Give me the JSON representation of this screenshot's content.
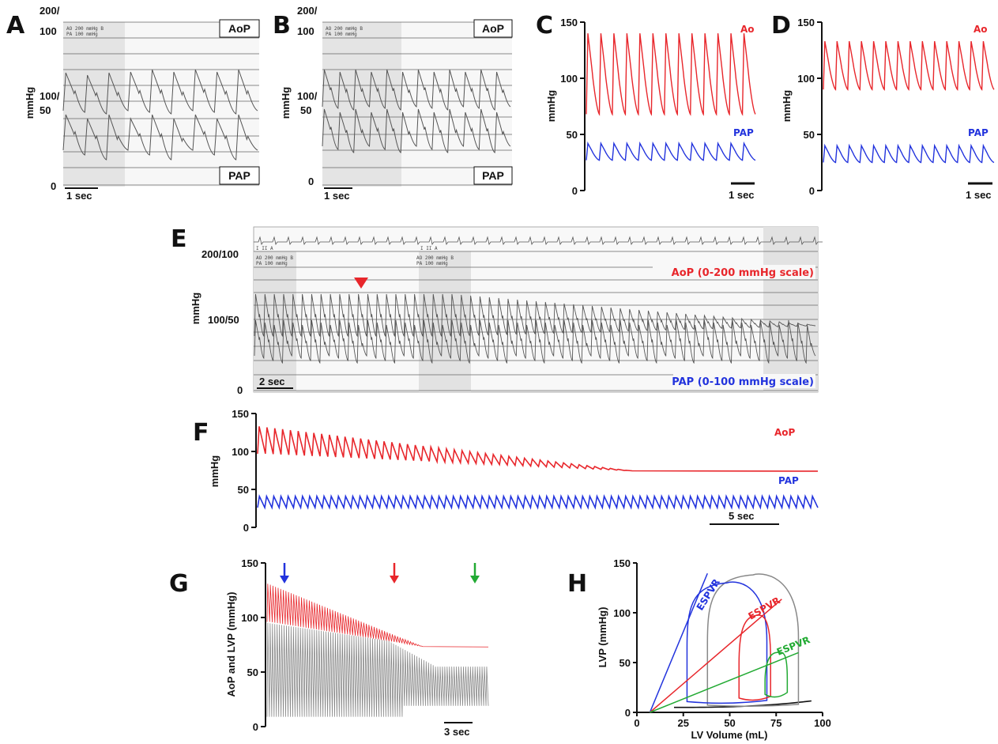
{
  "figure": {
    "panel_labels": [
      "A",
      "B",
      "C",
      "D",
      "E",
      "F",
      "G",
      "H"
    ],
    "colors": {
      "aop": "#e8262b",
      "pap": "#2233dd",
      "trace": "#555555",
      "esp_blue": "#2233dd",
      "esp_red": "#e8262b",
      "esp_green": "#22aa33",
      "gray": "#888888"
    },
    "icons": [
      "down-arrow-icon",
      "down-triangle-marker-icon"
    ]
  },
  "chart_data": [
    {
      "panel": "A",
      "type": "line",
      "ytick_labels": [
        "200/",
        "100",
        "100/",
        "50",
        "0"
      ],
      "ylabel": "mmHg",
      "box_labels": [
        "AoP",
        "PAP"
      ],
      "header_small": [
        "AO  200 mmHg   B",
        "PA  100 mmHg"
      ],
      "scale_bar": "1 sec",
      "beats": 9
    },
    {
      "panel": "B",
      "type": "line",
      "ytick_labels": [
        "200/",
        "100",
        "100/",
        "50",
        "0"
      ],
      "ylabel": "mmHg",
      "box_labels": [
        "AoP",
        "PAP"
      ],
      "header_small": [
        "AO  200 mmHg   B",
        "PA  100 mmHg"
      ],
      "scale_bar": "1 sec",
      "beats": 12
    },
    {
      "panel": "C",
      "type": "line",
      "yticks": [
        "150",
        "100",
        "50",
        "0"
      ],
      "ylim": [
        0,
        150
      ],
      "ylabel": "mmHg",
      "series": [
        {
          "name": "Ao",
          "beats": 13,
          "systolic": 140,
          "diastolic": 68,
          "color": "#e8262b"
        },
        {
          "name": "PAP",
          "beats": 13,
          "systolic": 42,
          "diastolic": 27,
          "color": "#2233dd"
        }
      ],
      "scale_bar": "1 sec"
    },
    {
      "panel": "D",
      "type": "line",
      "yticks": [
        "150",
        "100",
        "50",
        "0"
      ],
      "ylim": [
        0,
        150
      ],
      "ylabel": "mmHg",
      "series": [
        {
          "name": "Ao",
          "beats": 14,
          "systolic": 133,
          "diastolic": 90,
          "color": "#e8262b"
        },
        {
          "name": "PAP",
          "beats": 14,
          "systolic": 40,
          "diastolic": 25,
          "color": "#2233dd"
        }
      ],
      "scale_bar": "1 sec"
    },
    {
      "panel": "E",
      "type": "line",
      "ytick_labels": [
        "200/100",
        "100/50",
        "0"
      ],
      "ylabel": "mmHg",
      "header_small": [
        "AO  200 mmHg   B",
        "PA  100 mmHg"
      ],
      "header_small_2": [
        "AO  200 mmHg   B",
        "PA  100 mmHg"
      ],
      "ecg_labels": [
        "I II  A",
        "I II  A"
      ],
      "annotations": [
        "AoP (0-200 mmHg scale)",
        "PAP (0-100 mmHg scale)"
      ],
      "scale_bar": "2 sec",
      "beats": 60
    },
    {
      "panel": "F",
      "type": "line",
      "yticks": [
        "150",
        "100",
        "50",
        "0"
      ],
      "ylim": [
        0,
        150
      ],
      "ylabel": "mmHg",
      "series": [
        {
          "name": "AoP",
          "beats": 48,
          "start_sys": 130,
          "start_dia": 97,
          "end_level": 74,
          "color": "#e8262b"
        },
        {
          "name": "PAP",
          "beats": 78,
          "systolic": 41,
          "diastolic": 26,
          "color": "#2233dd"
        }
      ],
      "scale_bar": "5 sec"
    },
    {
      "panel": "G",
      "type": "line",
      "yticks": [
        "150",
        "100",
        "50",
        "0"
      ],
      "ylim": [
        0,
        150
      ],
      "ylabel": "AoP and LVP (mmHg)",
      "series": [
        {
          "name": "AoP",
          "start_sys": 131,
          "start_dia": 96,
          "end_level": 73,
          "color": "#e8262b"
        },
        {
          "name": "LVP",
          "start_max": 130,
          "end_max": 55,
          "min": 9,
          "color": "#888888"
        }
      ],
      "arrows": [
        "blue",
        "red",
        "green"
      ],
      "scale_bar": "3 sec"
    },
    {
      "panel": "H",
      "type": "line",
      "xticks": [
        "0",
        "25",
        "50",
        "75",
        "100"
      ],
      "xlim": [
        0,
        100
      ],
      "yticks": [
        "0",
        "50",
        "100",
        "150"
      ],
      "ylim": [
        0,
        150
      ],
      "xlabel": "LV Volume (mL)",
      "ylabel": "LVP (mmHg)",
      "espvr_labels": [
        "ESPVR",
        "ESPVR",
        "ESPVR"
      ],
      "loops": [
        {
          "color": "#888888",
          "ved": 87,
          "ves": 38,
          "pmax": 138
        },
        {
          "color": "#2233dd",
          "ved": 70,
          "ves": 27,
          "pmax": 130
        },
        {
          "color": "#e8262b",
          "ved": 72,
          "ves": 55,
          "pmax": 97
        },
        {
          "color": "#22aa33",
          "ved": 81,
          "ves": 69,
          "pmax": 60
        }
      ],
      "espvr_lines": [
        {
          "color": "#2233dd",
          "v0": 7,
          "slope": 4.5
        },
        {
          "color": "#e8262b",
          "v0": 7,
          "slope": 1.6
        },
        {
          "color": "#22aa33",
          "v0": 7,
          "slope": 0.75
        }
      ]
    }
  ]
}
